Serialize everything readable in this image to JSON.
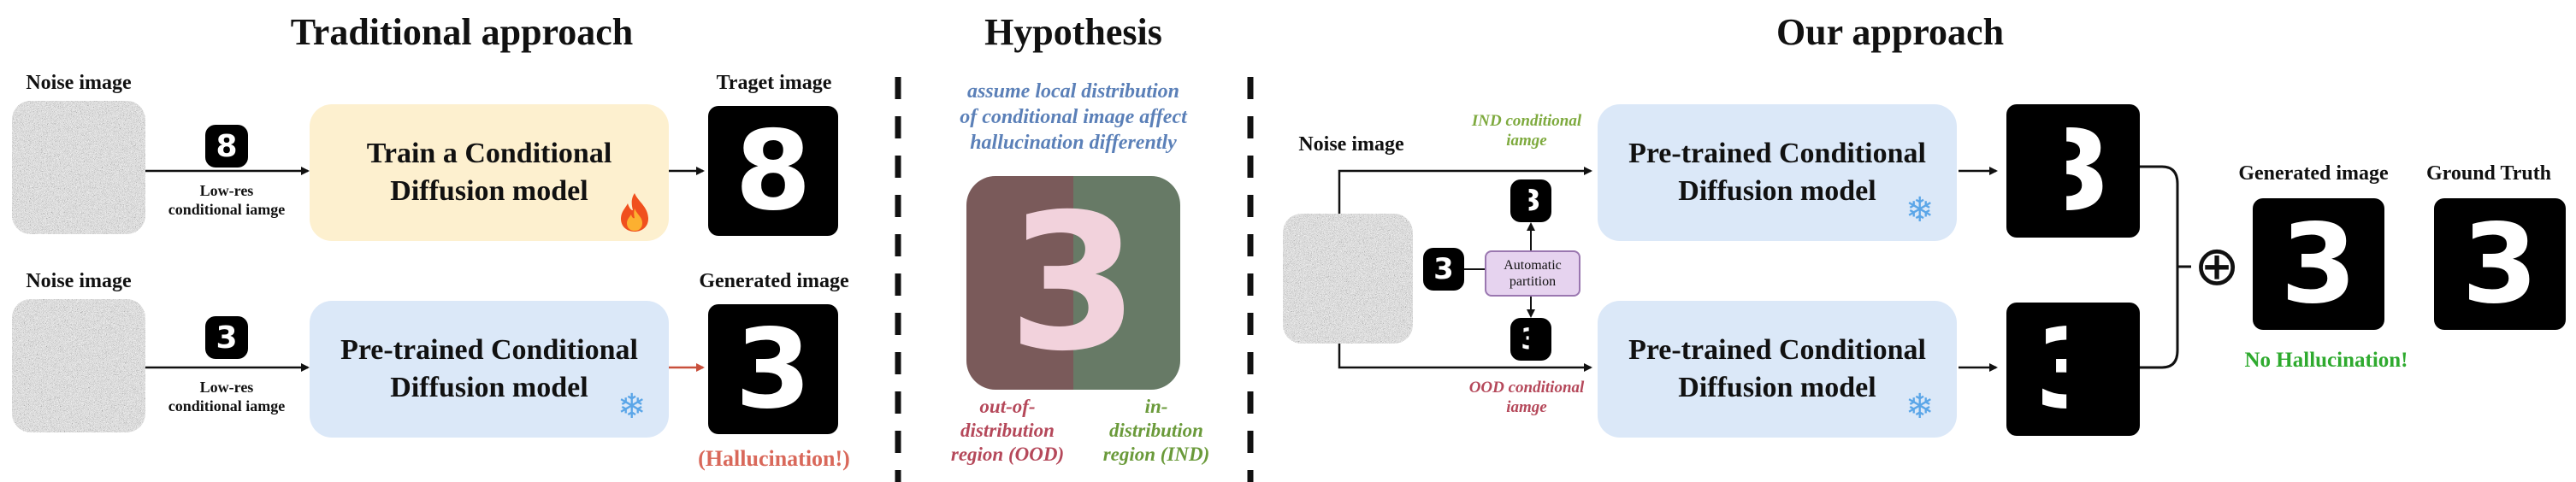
{
  "traditional": {
    "title": "Traditional approach",
    "row1": {
      "noise_label": "Noise image",
      "cond_label_line1": "Low-res",
      "cond_label_line2": "conditional iamge",
      "cond_digit": "8",
      "model_line1": "Train a Conditional",
      "model_line2": "Diffusion model",
      "output_label": "Traget image",
      "output_digit": "8",
      "model_color": "#fdf0cf",
      "icon": "fire-icon"
    },
    "row2": {
      "noise_label": "Noise image",
      "cond_label_line1": "Low-res",
      "cond_label_line2": "conditional iamge",
      "cond_digit": "3",
      "model_line1": "Pre-trained Conditional",
      "model_line2": "Diffusion model",
      "output_label": "Generated image",
      "output_digit": "3",
      "output_note": "(Hallucination!)",
      "model_color": "#dbe8f8",
      "icon": "snowflake-icon"
    }
  },
  "hypothesis": {
    "title": "Hypothesis",
    "caption_line1": "assume local distribution",
    "caption_line2": "of conditional image affect",
    "caption_line3": "hallucination differently",
    "digit": "3",
    "ood_line1": "out-of-",
    "ood_line2": "distribution",
    "ood_line3": "region (OOD)",
    "ind_line1": "in-",
    "ind_line2": "distribution",
    "ind_line3": "region (IND)",
    "ood_color": "#b5485a",
    "ind_color": "#6a9a3a",
    "caption_color": "#5b80b8"
  },
  "ours": {
    "title": "Our approach",
    "noise_label": "Noise image",
    "cond_digit": "3",
    "ind_label_line1": "IND conditional",
    "ind_label_line2": "iamge",
    "ood_label_line1": "OOD conditional",
    "ood_label_line2": "iamge",
    "partition_line1": "Automatic",
    "partition_line2": "partition",
    "model_top_line1": "Pre-trained Conditional",
    "model_top_line2": "Diffusion model",
    "model_bottom_line1": "Pre-trained Conditional",
    "model_bottom_line2": "Diffusion model",
    "combine_symbol": "⊕",
    "generated_label": "Generated image",
    "generated_digit": "3",
    "gt_label": "Ground Truth",
    "gt_digit": "3",
    "result_note": "No Hallucination!",
    "note_color": "#2eaa2e",
    "model_color": "#dbe8f8"
  }
}
